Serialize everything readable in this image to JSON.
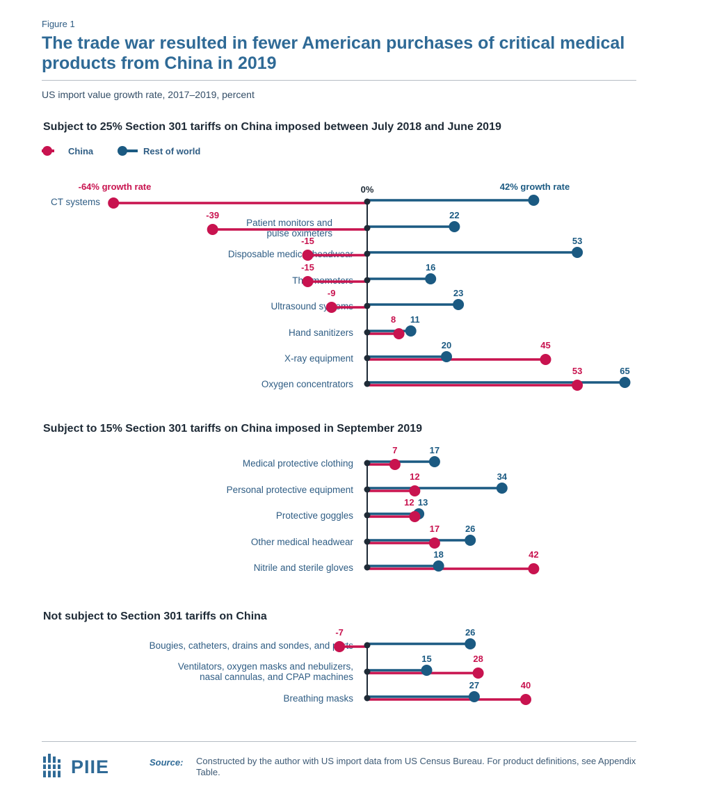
{
  "figure_label": "Figure 1",
  "title": "The trade war resulted in fewer American purchases of critical medical products from China in 2019",
  "subtitle": "US import value growth rate, 2017–2019, percent",
  "source_label": "Source:",
  "source_text": "Constructed by the author with US import data from US Census Bureau. For product definitions, see Appendix Table.",
  "logo_text": "PIIE",
  "colors": {
    "china": "#c8134f",
    "row": "#1b5a82",
    "zero_line": "#1e2a36",
    "title": "#2f6a96"
  },
  "chart_data": {
    "type": "dumbbell",
    "unit": "percent",
    "zero_label": "0%",
    "legend": [
      {
        "name": "China",
        "color": "#c8134f"
      },
      {
        "name": "Rest of world",
        "color": "#1b5a82"
      }
    ],
    "sections": [
      {
        "title": "Subject to 25% Section 301 tariffs on China imposed between July 2018 and June 2019",
        "items": [
          {
            "label": [
              "CT systems"
            ],
            "china": -64,
            "row": 42,
            "china_label": "-64% growth rate",
            "row_label": "42% growth rate"
          },
          {
            "label": [
              "Patient monitors and",
              "pulse oximeters"
            ],
            "china": -39,
            "row": 22,
            "china_label": "-39",
            "row_label": "22"
          },
          {
            "label": [
              "Disposable medical headwear"
            ],
            "china": -15,
            "row": 53,
            "china_label": "-15",
            "row_label": "53"
          },
          {
            "label": [
              "Thermometers"
            ],
            "china": -15,
            "row": 16,
            "china_label": "-15",
            "row_label": "16"
          },
          {
            "label": [
              "Ultrasound systems"
            ],
            "china": -9,
            "row": 23,
            "china_label": "-9",
            "row_label": "23"
          },
          {
            "label": [
              "Hand sanitizers"
            ],
            "china": 8,
            "row": 11,
            "china_label": "8",
            "row_label": "11"
          },
          {
            "label": [
              "X-ray equipment"
            ],
            "china": 45,
            "row": 20,
            "china_label": "45",
            "row_label": "20"
          },
          {
            "label": [
              "Oxygen concentrators"
            ],
            "china": 53,
            "row": 65,
            "china_label": "53",
            "row_label": "65"
          }
        ]
      },
      {
        "title": "Subject to 15% Section 301 tariffs on China imposed in September 2019",
        "items": [
          {
            "label": [
              "Medical protective clothing"
            ],
            "china": 7,
            "row": 17,
            "china_label": "7",
            "row_label": "17"
          },
          {
            "label": [
              "Personal protective equipment"
            ],
            "china": 12,
            "row": 34,
            "china_label": "12",
            "row_label": "34"
          },
          {
            "label": [
              "Protective goggles"
            ],
            "china": 12,
            "row": 13,
            "china_label": "12",
            "row_label": "13"
          },
          {
            "label": [
              "Other medical headwear"
            ],
            "china": 17,
            "row": 26,
            "china_label": "17",
            "row_label": "26"
          },
          {
            "label": [
              "Nitrile and sterile gloves"
            ],
            "china": 42,
            "row": 18,
            "china_label": "42",
            "row_label": "18"
          }
        ]
      },
      {
        "title": "Not subject to Section 301 tariffs on China",
        "items": [
          {
            "label": [
              "Bougies, catheters, drains and sondes, and parts"
            ],
            "china": -7,
            "row": 26,
            "china_label": "-7",
            "row_label": "26"
          },
          {
            "label": [
              "Ventilators, oxygen masks and nebulizers,",
              "nasal cannulas, and CPAP machines"
            ],
            "china": 28,
            "row": 15,
            "china_label": "28",
            "row_label": "15"
          },
          {
            "label": [
              "Breathing masks"
            ],
            "china": 40,
            "row": 27,
            "china_label": "40",
            "row_label": "27"
          }
        ]
      }
    ]
  }
}
